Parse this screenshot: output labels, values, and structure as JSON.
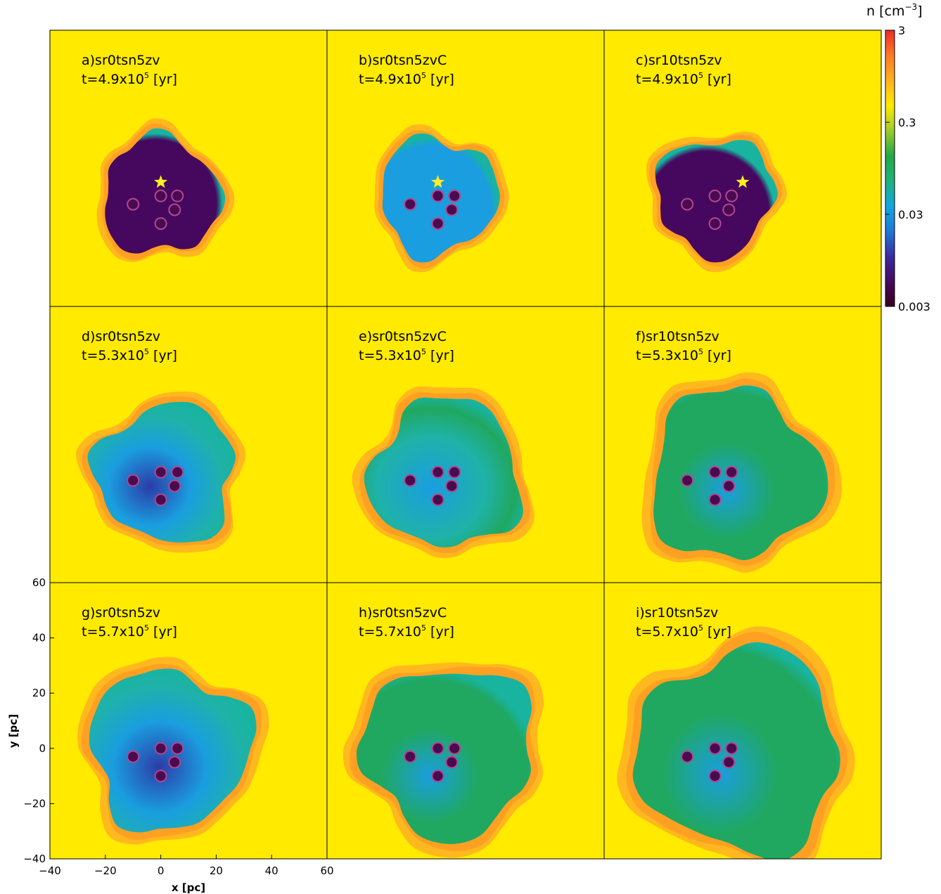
{
  "chart_data": {
    "type": "heatmap",
    "xlabel": "x [pc]",
    "ylabel": "y [pc]",
    "xlim": [
      -40,
      60
    ],
    "ylim": [
      -40,
      60
    ],
    "x_ticks": [
      "−40",
      "−20",
      "0",
      "20",
      "40",
      "60"
    ],
    "y_ticks": [
      "60",
      "40",
      "20",
      "0",
      "−20",
      "−40"
    ],
    "colorbar": {
      "label_base": "n [cm",
      "label_exp": "−3",
      "label_close": "]",
      "scale": "log",
      "range": [
        0.003,
        3
      ],
      "ticks": [
        "3",
        "0.3",
        "0.03",
        "0.003"
      ],
      "colors": [
        "#3a001c",
        "#460a5e",
        "#3a2ca0",
        "#1f7ad6",
        "#12a8e0",
        "#1fb27a",
        "#23a845",
        "#9ccc2a",
        "#ffea00",
        "#ffb21e",
        "#ff7a22",
        "#ee2a2a"
      ]
    },
    "colors": {
      "background": "#ffea00",
      "shell": "#ffb81e",
      "shell_dark": "#ff8c26",
      "rim": "#18b4a0",
      "cavity_a": "#46085e",
      "cavity_b": "#1a9edf",
      "cavity_d": "#1fb2a8",
      "cavity_f": "#20a860",
      "low": "#2c3ca8",
      "star": "#ffee22",
      "cluster": "#4a0a50"
    },
    "panels": [
      {
        "id": "a",
        "label": "a)sr0tsn5zv",
        "time": "t=4.9x10",
        "time_exp": "5",
        "time_unit": "[yr]",
        "cavity": "a",
        "radius": 22,
        "star": [
          0,
          5
        ],
        "shift": [
          0,
          0
        ]
      },
      {
        "id": "b",
        "label": "b)sr0tsn5zvC",
        "time": "t=4.9x10",
        "time_exp": "5",
        "time_unit": "[yr]",
        "cavity": "b",
        "radius": 22,
        "star": [
          0,
          5
        ],
        "shift": [
          0,
          0
        ]
      },
      {
        "id": "c",
        "label": "c)sr10tsn5zv",
        "time": "t=4.9x10",
        "time_exp": "5",
        "time_unit": "[yr]",
        "cavity": "a",
        "radius": 22,
        "star": [
          10,
          5
        ],
        "shift": [
          0,
          0
        ]
      },
      {
        "id": "d",
        "label": "d)sr0tsn5zv",
        "time": "t=5.3x10",
        "time_exp": "5",
        "time_unit": "[yr]",
        "cavity": "d",
        "radius": 26,
        "star": null,
        "shift": [
          2,
          2
        ]
      },
      {
        "id": "e",
        "label": "e)sr0tsn5zvC",
        "time": "t=5.3x10",
        "time_exp": "5",
        "time_unit": "[yr]",
        "cavity": "e",
        "radius": 28,
        "star": null,
        "shift": [
          3,
          4
        ]
      },
      {
        "id": "f",
        "label": "f)sr10tsn5zv",
        "time": "t=5.3x10",
        "time_exp": "5",
        "time_unit": "[yr]",
        "cavity": "f",
        "radius": 32,
        "star": null,
        "shift": [
          7,
          5
        ]
      },
      {
        "id": "g",
        "label": "g)sr0tsn5zv",
        "time": "t=5.7x10",
        "time_exp": "5",
        "time_unit": "[yr]",
        "cavity": "d",
        "radius": 30,
        "star": null,
        "shift": [
          3,
          2
        ]
      },
      {
        "id": "h",
        "label": "h)sr0tsn5zvC",
        "time": "t=5.7x10",
        "time_exp": "5",
        "time_unit": "[yr]",
        "cavity": "f",
        "radius": 32,
        "star": null,
        "shift": [
          4,
          4
        ]
      },
      {
        "id": "i",
        "label": "i)sr10tsn5zv",
        "time": "t=5.7x10",
        "time_exp": "5",
        "time_unit": "[yr]",
        "cavity": "f",
        "radius": 38,
        "star": null,
        "shift": [
          9,
          6
        ]
      }
    ],
    "cluster_positions": [
      [
        -10,
        -3
      ],
      [
        0,
        0
      ],
      [
        6,
        0
      ],
      [
        5,
        -5
      ],
      [
        0,
        -10
      ]
    ]
  }
}
